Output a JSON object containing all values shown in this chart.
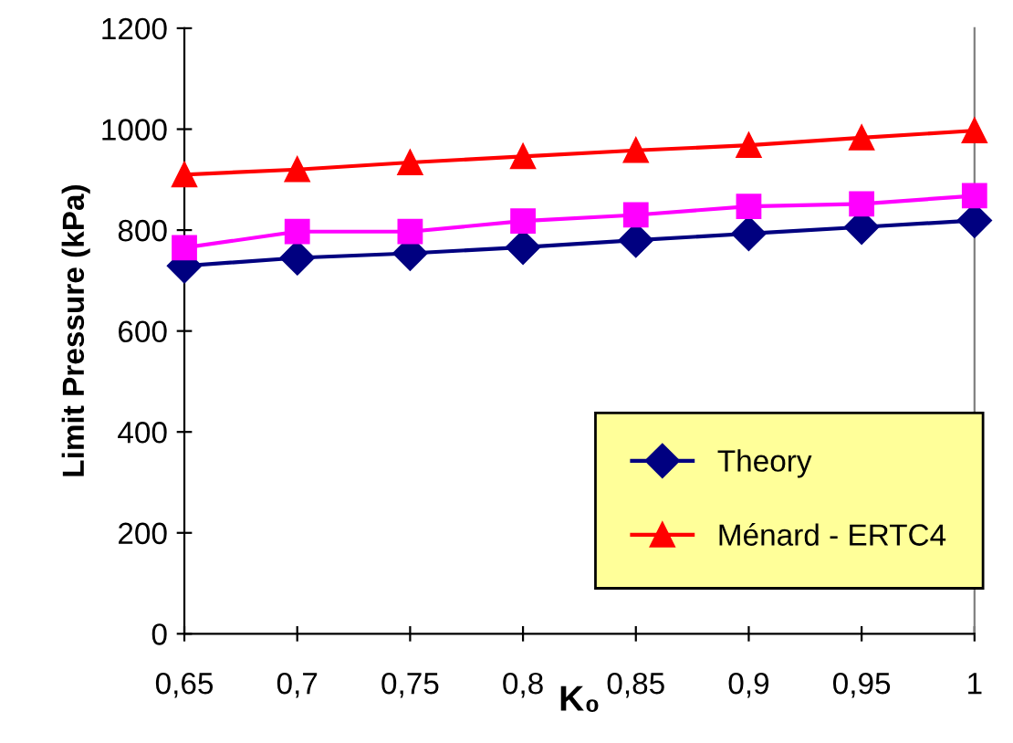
{
  "chart_data": {
    "type": "line",
    "xlabel": "K₀",
    "ylabel": "Limit Pressure (kPa)",
    "x": [
      0.65,
      0.7,
      0.75,
      0.8,
      0.85,
      0.9,
      0.95,
      1
    ],
    "xlim": [
      0.65,
      1
    ],
    "xticks": [
      {
        "value": 0.65,
        "label": "0,65"
      },
      {
        "value": 0.7,
        "label": "0,7"
      },
      {
        "value": 0.75,
        "label": "0,75"
      },
      {
        "value": 0.8,
        "label": "0,8"
      },
      {
        "value": 0.85,
        "label": "0,85"
      },
      {
        "value": 0.9,
        "label": "0,9"
      },
      {
        "value": 0.95,
        "label": "0,95"
      },
      1
    ],
    "ylim": [
      0,
      1200
    ],
    "yticks": [
      0,
      200,
      400,
      600,
      800,
      1000,
      1200
    ],
    "grid": false,
    "legend": "bottom right",
    "series": [
      {
        "name": "Theory",
        "color": "#000080",
        "marker": "diamond",
        "values": [
          729,
          745,
          754,
          766,
          780,
          793,
          806,
          819
        ]
      },
      {
        "color": "#ff00ff",
        "marker": "square",
        "values": [
          765,
          797,
          797,
          818,
          830,
          847,
          852,
          868
        ]
      },
      {
        "name": "Ménard - ERTC4",
        "color": "#ff0000",
        "marker": "triangle",
        "values": [
          910,
          920,
          934,
          946,
          958,
          968,
          983,
          997
        ]
      }
    ]
  }
}
